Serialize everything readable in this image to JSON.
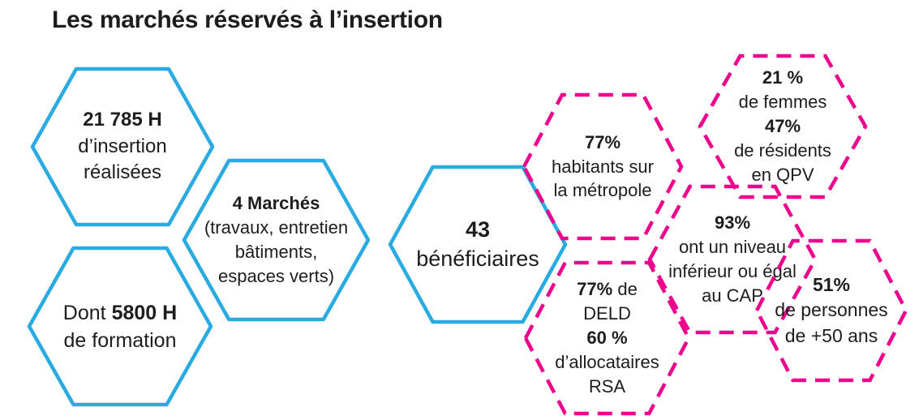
{
  "title": "Les marchés réservés à l’insertion",
  "colors": {
    "blue": "#29ABE2",
    "pink": "#EC008C",
    "text": "#1D1D1B",
    "background": "#FFFFFF"
  },
  "hexagons": [
    {
      "name": "insertion-hours",
      "variant": "blue",
      "dashed": false,
      "lines": [
        {
          "runs": [
            {
              "text": "21 785 H",
              "bold": true
            }
          ]
        },
        {
          "runs": [
            {
              "text": "d’insertion",
              "bold": false
            }
          ]
        },
        {
          "runs": [
            {
              "text": "réalisées",
              "bold": false
            }
          ]
        }
      ]
    },
    {
      "name": "marches",
      "variant": "blue",
      "dashed": false,
      "lines": [
        {
          "runs": [
            {
              "text": "4 Marchés",
              "bold": true
            }
          ]
        },
        {
          "runs": [
            {
              "text": "(travaux, entretien",
              "bold": false
            }
          ]
        },
        {
          "runs": [
            {
              "text": "bâtiments,",
              "bold": false
            }
          ]
        },
        {
          "runs": [
            {
              "text": "espaces verts)",
              "bold": false
            }
          ]
        }
      ]
    },
    {
      "name": "formation-hours",
      "variant": "blue",
      "dashed": false,
      "lines": [
        {
          "runs": [
            {
              "text": "Dont ",
              "bold": false
            },
            {
              "text": "5800 H",
              "bold": true
            }
          ]
        },
        {
          "runs": [
            {
              "text": "de formation",
              "bold": false
            }
          ]
        }
      ]
    },
    {
      "name": "beneficiaires",
      "variant": "blue",
      "dashed": false,
      "lines": [
        {
          "runs": [
            {
              "text": "43",
              "bold": true
            }
          ]
        },
        {
          "runs": [
            {
              "text": "bénéficiaires",
              "bold": false
            }
          ]
        }
      ]
    },
    {
      "name": "metropole",
      "variant": "pink",
      "dashed": true,
      "lines": [
        {
          "runs": [
            {
              "text": "77%",
              "bold": true
            }
          ]
        },
        {
          "runs": [
            {
              "text": "habitants sur",
              "bold": false
            }
          ]
        },
        {
          "runs": [
            {
              "text": "la métropole",
              "bold": false
            }
          ]
        }
      ]
    },
    {
      "name": "femmes-qpv",
      "variant": "pink",
      "dashed": true,
      "lines": [
        {
          "runs": [
            {
              "text": "21 %",
              "bold": true
            }
          ]
        },
        {
          "runs": [
            {
              "text": "de femmes",
              "bold": false
            }
          ]
        },
        {
          "runs": [
            {
              "text": "47%",
              "bold": true
            }
          ]
        },
        {
          "runs": [
            {
              "text": "de résidents",
              "bold": false
            }
          ]
        },
        {
          "runs": [
            {
              "text": "en QPV",
              "bold": false
            }
          ]
        }
      ]
    },
    {
      "name": "niveau-cap",
      "variant": "pink",
      "dashed": true,
      "lines": [
        {
          "runs": [
            {
              "text": "93%",
              "bold": true
            }
          ]
        },
        {
          "runs": [
            {
              "text": "ont un niveau",
              "bold": false
            }
          ]
        },
        {
          "runs": [
            {
              "text": "inférieur ou égal",
              "bold": false
            }
          ]
        },
        {
          "runs": [
            {
              "text": "au CAP",
              "bold": false
            }
          ]
        }
      ]
    },
    {
      "name": "deld-rsa",
      "variant": "pink",
      "dashed": true,
      "lines": [
        {
          "runs": [
            {
              "text": "77%",
              "bold": true
            },
            {
              "text": " de",
              "bold": false
            }
          ]
        },
        {
          "runs": [
            {
              "text": "DELD",
              "bold": false
            }
          ]
        },
        {
          "runs": [
            {
              "text": "60 %",
              "bold": true
            }
          ]
        },
        {
          "runs": [
            {
              "text": "d’allocataires",
              "bold": false
            }
          ]
        },
        {
          "runs": [
            {
              "text": "RSA",
              "bold": false
            }
          ]
        }
      ]
    },
    {
      "name": "plus-50-ans",
      "variant": "pink",
      "dashed": true,
      "lines": [
        {
          "runs": [
            {
              "text": "51%",
              "bold": true
            }
          ]
        },
        {
          "runs": [
            {
              "text": "de personnes",
              "bold": false
            }
          ]
        },
        {
          "runs": [
            {
              "text": "de +50 ans",
              "bold": false
            }
          ]
        }
      ]
    }
  ]
}
